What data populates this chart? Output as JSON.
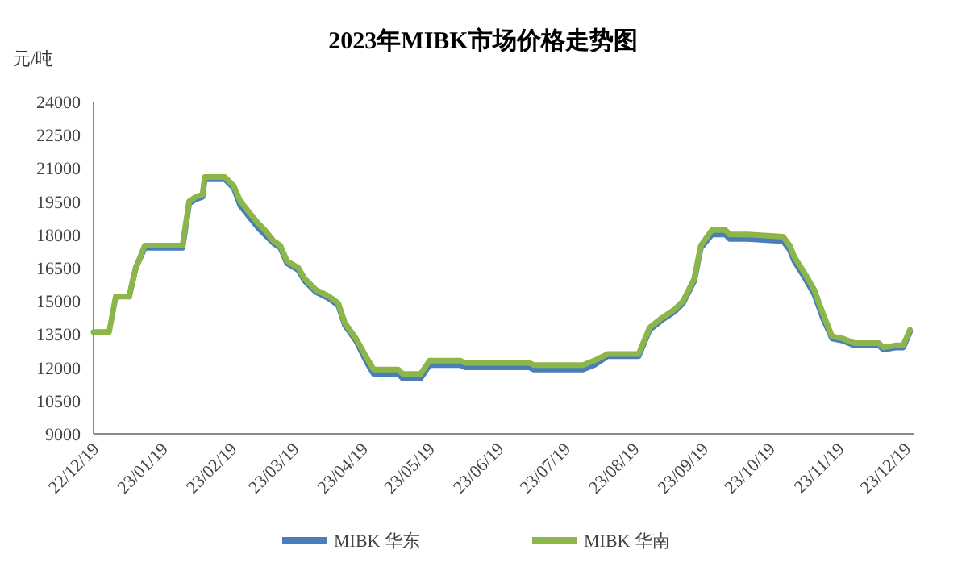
{
  "chart_data": {
    "type": "line",
    "title": "2023年MIBK市场价格走势图",
    "ylabel": "元/吨",
    "x": [
      "2022-12-19",
      "2022-12-26",
      "2022-12-29",
      "2023-01-04",
      "2023-01-07",
      "2023-01-11",
      "2023-01-28",
      "2023-01-31",
      "2023-02-03",
      "2023-02-06",
      "2023-02-07",
      "2023-02-16",
      "2023-02-20",
      "2023-02-23",
      "2023-02-27",
      "2023-03-03",
      "2023-03-06",
      "2023-03-10",
      "2023-03-13",
      "2023-03-16",
      "2023-03-21",
      "2023-03-24",
      "2023-03-29",
      "2023-04-04",
      "2023-04-08",
      "2023-04-11",
      "2023-04-16",
      "2023-04-21",
      "2023-04-24",
      "2023-05-05",
      "2023-05-07",
      "2023-05-15",
      "2023-05-19",
      "2023-06-02",
      "2023-06-04",
      "2023-07-03",
      "2023-07-05",
      "2023-07-27",
      "2023-08-01",
      "2023-08-07",
      "2023-08-21",
      "2023-08-26",
      "2023-08-31",
      "2023-09-06",
      "2023-09-10",
      "2023-09-15",
      "2023-09-18",
      "2023-09-23",
      "2023-09-29",
      "2023-10-01",
      "2023-10-09",
      "2023-10-25",
      "2023-10-28",
      "2023-10-30",
      "2023-11-04",
      "2023-11-08",
      "2023-11-12",
      "2023-11-16",
      "2023-11-21",
      "2023-11-26",
      "2023-12-07",
      "2023-12-09",
      "2023-12-15",
      "2023-12-18",
      "2023-12-21"
    ],
    "series": [
      {
        "name": "MIBK 华东",
        "color": "#4a7ebb",
        "values": [
          null,
          null,
          null,
          15200,
          16500,
          17400,
          17400,
          19400,
          19600,
          19700,
          20500,
          20500,
          20100,
          19300,
          18800,
          18300,
          18000,
          17600,
          17400,
          16700,
          16400,
          15900,
          15400,
          15100,
          14800,
          13900,
          13200,
          12200,
          11700,
          11700,
          11500,
          11500,
          12100,
          12100,
          12000,
          12000,
          11900,
          11900,
          12100,
          12500,
          12500,
          13700,
          14100,
          14500,
          14900,
          15900,
          17400,
          18000,
          18000,
          17800,
          17800,
          17700,
          17300,
          16800,
          16000,
          15300,
          14200,
          13300,
          13200,
          13000,
          13000,
          12800,
          12900,
          12900,
          13600
        ]
      },
      {
        "name": "MIBK 华南",
        "color": "#8db64a",
        "values": [
          13600,
          13600,
          15200,
          15200,
          16500,
          17500,
          17500,
          19500,
          19700,
          19800,
          20600,
          20600,
          20200,
          19500,
          19000,
          18500,
          18200,
          17700,
          17500,
          16800,
          16500,
          16000,
          15500,
          15200,
          14900,
          14000,
          13300,
          12400,
          11900,
          11900,
          11700,
          11700,
          12300,
          12300,
          12200,
          12200,
          12100,
          12100,
          12300,
          12600,
          12600,
          13800,
          14200,
          14600,
          15000,
          16000,
          17500,
          18200,
          18200,
          18000,
          18000,
          17900,
          17500,
          17000,
          16200,
          15500,
          14400,
          13400,
          13300,
          13100,
          13100,
          12900,
          13000,
          13000,
          13700
        ]
      }
    ],
    "xlim": [
      "2022-12-19",
      "2023-12-23"
    ],
    "xticks": [
      {
        "value": "2022-12-19",
        "label": "22/12/19"
      },
      {
        "value": "2023-01-19",
        "label": "23/01/19"
      },
      {
        "value": "2023-02-19",
        "label": "23/02/19"
      },
      {
        "value": "2023-03-19",
        "label": "23/03/19"
      },
      {
        "value": "2023-04-19",
        "label": "23/04/19"
      },
      {
        "value": "2023-05-19",
        "label": "23/05/19"
      },
      {
        "value": "2023-06-19",
        "label": "23/06/19"
      },
      {
        "value": "2023-07-19",
        "label": "23/07/19"
      },
      {
        "value": "2023-08-19",
        "label": "23/08/19"
      },
      {
        "value": "2023-09-19",
        "label": "23/09/19"
      },
      {
        "value": "2023-10-19",
        "label": "23/10/19"
      },
      {
        "value": "2023-11-19",
        "label": "23/11/19"
      },
      {
        "value": "2023-12-19",
        "label": "23/12/19"
      }
    ],
    "ylim": [
      9000,
      24000
    ],
    "yticks": [
      9000,
      10500,
      12000,
      13500,
      15000,
      16500,
      18000,
      19500,
      21000,
      22500,
      24000
    ],
    "grid": false,
    "legend": "bottom",
    "marker": "none",
    "line_style": "solid"
  }
}
